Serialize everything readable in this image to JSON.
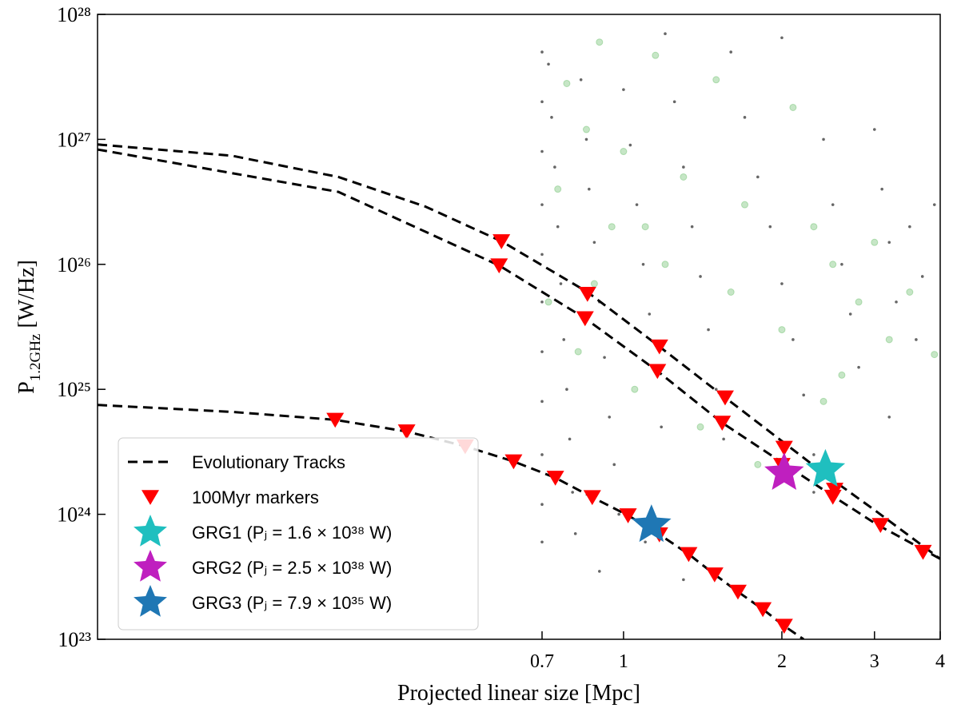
{
  "chart_data": {
    "type": "line",
    "log_x": true,
    "log_y": true,
    "xlabel": "Projected linear size [Mpc]",
    "ylabel": {
      "main": "P",
      "sub": "1.2GHz",
      "unit": " [W/Hz]"
    },
    "xlim": [
      0.1,
      4
    ],
    "ylim": [
      1e+23,
      1e+28
    ],
    "xticks": [
      0.7,
      1,
      2,
      3,
      4
    ],
    "yticks": [
      {
        "value": 1e+23,
        "label": "10²³"
      },
      {
        "value": 1e+24,
        "label": "10²⁴"
      },
      {
        "value": 1e+25,
        "label": "10²⁵"
      },
      {
        "value": 1e+26,
        "label": "10²⁶"
      },
      {
        "value": 1e+27,
        "label": "10²⁷"
      },
      {
        "value": 1e+28,
        "label": "10²⁸"
      }
    ],
    "legend": "lower left",
    "scatter_points": [
      {
        "color": "#000000",
        "x": [
          0.7,
          0.7,
          0.7,
          0.7,
          0.7,
          0.7,
          0.7,
          0.7,
          0.7,
          0.7,
          0.7,
          0.72,
          0.73,
          0.74,
          0.75,
          0.76,
          0.77,
          0.78,
          0.79,
          0.8,
          0.81,
          0.83,
          0.85,
          0.86,
          0.88,
          0.9,
          0.92,
          0.94,
          0.96,
          0.98,
          1.0,
          1.03,
          1.06,
          1.09,
          1.12,
          1.15,
          1.18,
          1.2,
          1.25,
          1.3,
          1.35,
          1.4,
          1.45,
          1.5,
          1.55,
          1.6,
          1.7,
          1.8,
          1.9,
          2.0,
          2.1,
          2.2,
          2.3,
          2.0,
          2.4,
          2.5,
          2.6,
          2.7,
          2.8,
          3.0,
          3.1,
          3.2,
          3.3,
          3.5,
          3.7,
          3.9,
          3.6,
          2.3,
          1.1,
          0.9,
          1.3,
          3.2
        ],
        "values": [
          5e+27,
          2e+27,
          8e+26,
          3e+26,
          1.2e+26,
          5e+25,
          2e+25,
          8e+24,
          3e+24,
          1.2e+24,
          6e+23,
          4e+27,
          1.5e+27,
          6e+26,
          2e+26,
          7e+25,
          2.5e+25,
          1e+25,
          4e+24,
          1.5e+24,
          7e+23,
          3e+27,
          1e+27,
          4e+26,
          1.5e+26,
          5e+25,
          1.8e+25,
          6e+24,
          2.5e+24,
          1e+24,
          2.5e+27,
          9e+26,
          3e+26,
          1e+26,
          4e+25,
          1.5e+25,
          5e+24,
          7e+27,
          2e+27,
          6e+26,
          2e+26,
          8e+25,
          3e+25,
          1e+25,
          4e+24,
          5e+27,
          1.5e+27,
          5e+26,
          2e+26,
          7e+25,
          2.5e+25,
          9e+24,
          3e+24,
          6.5e+27,
          1e+27,
          3e+26,
          1e+26,
          4e+25,
          1.5e+25,
          1.2e+27,
          4e+26,
          1.5e+26,
          5e+25,
          2e+26,
          8e+25,
          3e+26,
          2.5e+25,
          1.5e+24,
          6e+23,
          3.5e+23,
          3e+23,
          6e+24
        ]
      },
      {
        "color": "#5cb85c",
        "x": [
          0.9,
          1.15,
          1.5,
          2.1,
          0.78,
          0.85,
          1.0,
          1.3,
          1.7,
          2.3,
          2.5,
          2.8,
          3.2,
          3.9,
          0.75,
          0.95,
          1.2,
          1.6,
          2.0,
          2.6,
          0.72,
          0.82,
          1.05,
          1.4,
          1.8,
          2.4,
          3.5,
          3.0,
          1.1,
          0.88
        ],
        "values": [
          6e+27,
          4.7e+27,
          3e+27,
          1.8e+27,
          2.8e+27,
          1.2e+27,
          8e+26,
          5e+26,
          3e+26,
          2e+26,
          1e+26,
          5e+25,
          2.5e+25,
          1.9e+25,
          4e+26,
          2e+26,
          1e+26,
          6e+25,
          3e+25,
          1.3e+25,
          5e+25,
          2e+25,
          1e+25,
          5e+24,
          2.5e+24,
          8e+24,
          6e+25,
          1.5e+26,
          2e+26,
          7e+25
        ]
      }
    ],
    "series": [
      {
        "name": "Evolutionary Tracks",
        "type": "line",
        "color": "#000000",
        "dashed": true,
        "tracks": [
          {
            "x": [
              0.1,
              0.18,
              0.287,
              0.42,
              0.586,
              0.854,
              1.17,
              1.56,
              2.45,
              3.03,
              4.0
            ],
            "values": [
              9.1e+26,
              7.4e+26,
              5e+26,
              2.9e+26,
              1.53e+26,
              6e+25,
              2.2e+25,
              8.6e+24,
              2e+24,
              1.05e+24,
              4.4e+23
            ]
          },
          {
            "x": [
              0.1,
              0.287,
              0.58,
              0.845,
              1.16,
              1.54,
              2.5,
              3.03,
              4.0
            ],
            "values": [
              8.3e+26,
              3.8e+26,
              9.8e+25,
              3.7e+25,
              1.4e+25,
              5.4e+24,
              1.4e+24,
              8.3e+23,
              4.4e+23
            ]
          },
          {
            "x": [
              0.1,
              0.18,
              0.283,
              0.387,
              0.5,
              0.618,
              0.742,
              0.872,
              1.02,
              1.17,
              1.33,
              1.49,
              1.65,
              1.84,
              2.02,
              2.2
            ],
            "values": [
              7.5e+24,
              6.6e+24,
              5.7e+24,
              4.6e+24,
              3.5e+24,
              2.65e+24,
              1.96e+24,
              1.37e+24,
              9.8e+23,
              6.9e+23,
              4.8e+23,
              3.3e+23,
              2.4e+23,
              1.74e+23,
              1.28e+23,
              1e+23
            ]
          }
        ]
      },
      {
        "name": "100Myr markers",
        "type": "triangle",
        "color": "#ff0000",
        "x": [
          0.586,
          0.854,
          1.17,
          1.56,
          2.02,
          2.52,
          3.08,
          3.71,
          0.58,
          0.845,
          1.16,
          1.54,
          2.0,
          2.5,
          0.283,
          0.387,
          0.5,
          0.618,
          0.742,
          0.872,
          1.02,
          1.17,
          1.33,
          1.49,
          1.65,
          1.84,
          2.02
        ],
        "values": [
          1.53e+26,
          5.8e+25,
          2.2e+25,
          8.6e+24,
          3.4e+24,
          1.57e+24,
          8.2e+23,
          5e+23,
          9.8e+25,
          3.7e+25,
          1.4e+25,
          5.4e+24,
          2.48e+24,
          1.38e+24,
          5.7e+24,
          4.6e+24,
          3.5e+24,
          2.65e+24,
          1.96e+24,
          1.37e+24,
          9.8e+23,
          6.9e+23,
          4.8e+23,
          3.3e+23,
          2.4e+23,
          1.74e+23,
          1.28e+23
        ]
      },
      {
        "name": "GRG1 (Pⱼ = 1.6 × 10³⁸ W)",
        "type": "star",
        "color": "#1fbfbf",
        "x": [
          2.42
        ],
        "values": [
          2.27e+24
        ]
      },
      {
        "name": "GRG2 (Pⱼ = 2.5 × 10³⁸ W)",
        "type": "star",
        "color": "#bf1fbf",
        "x": [
          2.02
        ],
        "values": [
          2.14e+24
        ]
      },
      {
        "name": "GRG3 (Pⱼ = 7.9 × 10³⁵ W)",
        "type": "star",
        "color": "#1f77b4",
        "x": [
          1.13
        ],
        "values": [
          8.2e+23
        ]
      }
    ]
  }
}
